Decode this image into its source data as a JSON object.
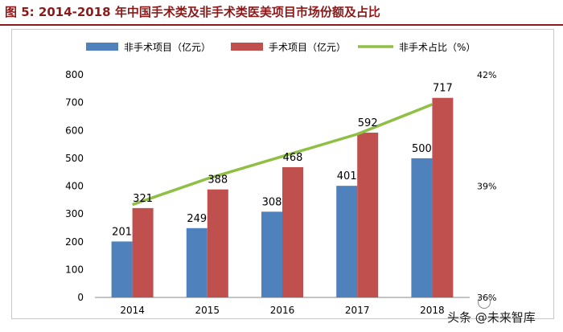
{
  "figure_title": "图 5:  2014-2018 年中国手术类及非手术类医美项目市场份额及占比",
  "watermark": "头条 @未来智库",
  "colors": {
    "non_surgical": "#4f81bd",
    "surgical": "#c0504d",
    "share_line": "#8fbf44",
    "title": "#8b1a1a"
  },
  "chart_data": {
    "type": "bar",
    "categories": [
      "2014",
      "2015",
      "2016",
      "2017",
      "2018"
    ],
    "series": [
      {
        "name": "非手术项目（亿元）",
        "type": "bar",
        "axis": "left",
        "values": [
          201,
          249,
          308,
          401,
          500
        ]
      },
      {
        "name": "手术项目（亿元）",
        "type": "bar",
        "axis": "left",
        "values": [
          321,
          388,
          468,
          592,
          717
        ]
      },
      {
        "name": "非手术占比（%）",
        "type": "line",
        "axis": "right",
        "values": [
          38.5,
          39.2,
          39.8,
          40.4,
          41.2
        ]
      }
    ],
    "left_axis": {
      "min": 0,
      "max": 800,
      "ticks": [
        0,
        100,
        200,
        300,
        400,
        500,
        600,
        700,
        800
      ]
    },
    "right_axis": {
      "min": 36,
      "max": 42,
      "ticks": [
        36,
        39,
        42
      ],
      "tick_labels": [
        "36%",
        "39%",
        "42%"
      ]
    },
    "legend": "top",
    "grid": false
  }
}
